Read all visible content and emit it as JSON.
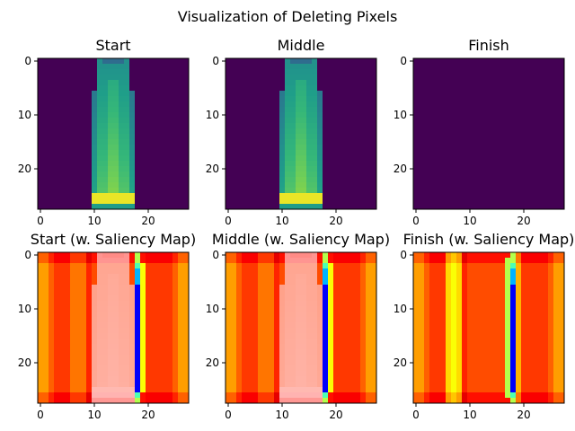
{
  "figure_title": "Visualization of Deleting Pixels",
  "colors": {
    "viridis_bg": "#440154",
    "jet_background_red": "#800000"
  },
  "chart_data": [
    {
      "type": "heatmap",
      "title": "Start",
      "colormap": "viridis",
      "grid_size": [
        28,
        28
      ],
      "x_ticks": [
        0,
        10,
        20
      ],
      "y_ticks": [
        0,
        10,
        20
      ],
      "xlim": [
        -0.5,
        27.5
      ],
      "ylim": [
        27.5,
        -0.5
      ],
      "image": "dress silhouette spanning columns 10–17, rows 0–27, bright hem at rows 25–26"
    },
    {
      "type": "heatmap",
      "title": "Middle",
      "colormap": "viridis",
      "grid_size": [
        28,
        28
      ],
      "x_ticks": [
        0,
        10,
        20
      ],
      "y_ticks": [
        0,
        10,
        20
      ],
      "xlim": [
        -0.5,
        27.5
      ],
      "ylim": [
        27.5,
        -0.5
      ],
      "image": "same dress silhouette as Start"
    },
    {
      "type": "heatmap",
      "title": "Finish",
      "colormap": "viridis",
      "grid_size": [
        28,
        28
      ],
      "x_ticks": [
        0,
        10,
        20
      ],
      "y_ticks": [
        0,
        10,
        20
      ],
      "xlim": [
        -0.5,
        27.5
      ],
      "ylim": [
        27.5,
        -0.5
      ],
      "image": "all pixels deleted (uniform background)"
    },
    {
      "type": "heatmap",
      "title": "Start (w. Saliency Map)",
      "colormap": "jet",
      "grid_size": [
        28,
        28
      ],
      "x_ticks": [
        0,
        10,
        20
      ],
      "y_ticks": [
        0,
        10,
        20
      ],
      "xlim": [
        -0.5,
        27.5
      ],
      "ylim": [
        27.5,
        -0.5
      ],
      "image": "red saliency field with dress overlaid in pink, cyan/blue stripe at column 18"
    },
    {
      "type": "heatmap",
      "title": "Middle (w. Saliency Map)",
      "colormap": "jet",
      "grid_size": [
        28,
        28
      ],
      "x_ticks": [
        0,
        10,
        20
      ],
      "y_ticks": [
        0,
        10,
        20
      ],
      "xlim": [
        -0.5,
        27.5
      ],
      "ylim": [
        27.5,
        -0.5
      ],
      "image": "same as Start (w. Saliency Map)"
    },
    {
      "type": "heatmap",
      "title": "Finish (w. Saliency Map)",
      "colormap": "jet",
      "grid_size": [
        28,
        28
      ],
      "x_ticks": [
        0,
        10,
        20
      ],
      "y_ticks": [
        0,
        10,
        20
      ],
      "xlim": [
        -0.5,
        27.5
      ],
      "ylim": [
        27.5,
        -0.5
      ],
      "image": "red saliency field without dress, bright stripes at columns 6–8 and 17–19"
    }
  ]
}
